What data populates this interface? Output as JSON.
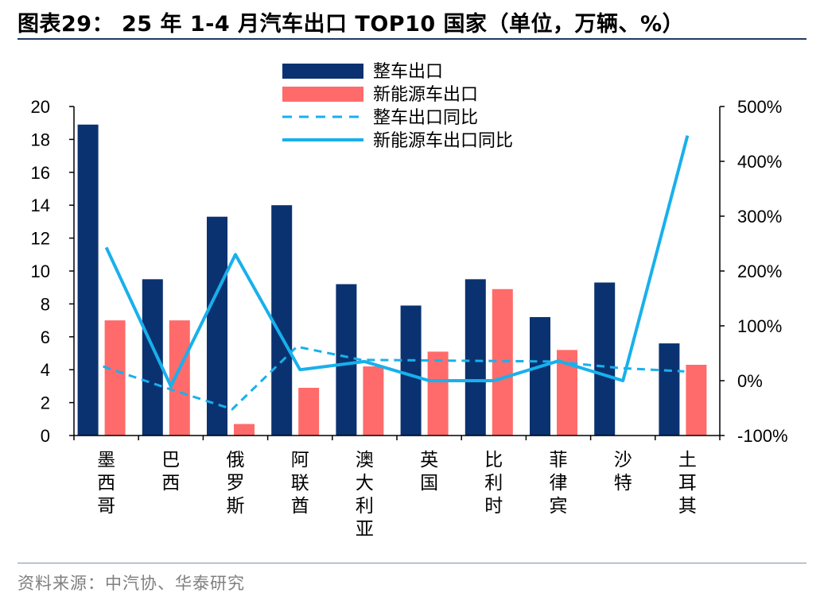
{
  "title": "图表29： 25 年 1-4 月汽车出口 TOP10 国家（单位，万辆、%）",
  "source": "资料来源：中汽协、华泰研究",
  "colors": {
    "vehicle_export": "#0b3270",
    "nev_export": "#ff6b6b",
    "yoy_line": "#18b0ec",
    "axis": "#000000",
    "rule": "#1f3b63"
  },
  "chart_data": {
    "type": "bar",
    "categories": [
      "墨西哥",
      "巴西",
      "俄罗斯",
      "阿联酋",
      "澳大利亚",
      "英国",
      "比利时",
      "菲律宾",
      "沙特",
      "土耳其"
    ],
    "series": [
      {
        "name": "整车出口",
        "type": "bar",
        "axis": "left",
        "values": [
          18.9,
          9.5,
          13.3,
          14.0,
          9.2,
          7.9,
          9.5,
          7.2,
          9.3,
          5.6
        ]
      },
      {
        "name": "新能源车出口",
        "type": "bar",
        "axis": "left",
        "values": [
          7.0,
          7.0,
          0.7,
          2.9,
          4.2,
          5.1,
          8.9,
          5.2,
          null,
          4.3
        ]
      },
      {
        "name": "整车出口同比",
        "type": "line",
        "style": "dashed",
        "axis": "right",
        "values": [
          26,
          -14,
          -52,
          62,
          38,
          null,
          null,
          35,
          23,
          17
        ]
      },
      {
        "name": "新能源车出口同比",
        "type": "line",
        "style": "solid",
        "axis": "right",
        "values": [
          243,
          -10,
          230,
          20,
          35,
          0,
          0,
          36,
          0,
          447
        ]
      }
    ],
    "ylim_left": [
      0,
      20
    ],
    "yticks_left": [
      0,
      2,
      4,
      6,
      8,
      10,
      12,
      14,
      16,
      18,
      20
    ],
    "ylim_right": [
      -100,
      500
    ],
    "yticks_right": [
      "-100%",
      "0%",
      "100%",
      "200%",
      "300%",
      "400%",
      "500%"
    ],
    "grid": false,
    "legend": "top-center"
  }
}
